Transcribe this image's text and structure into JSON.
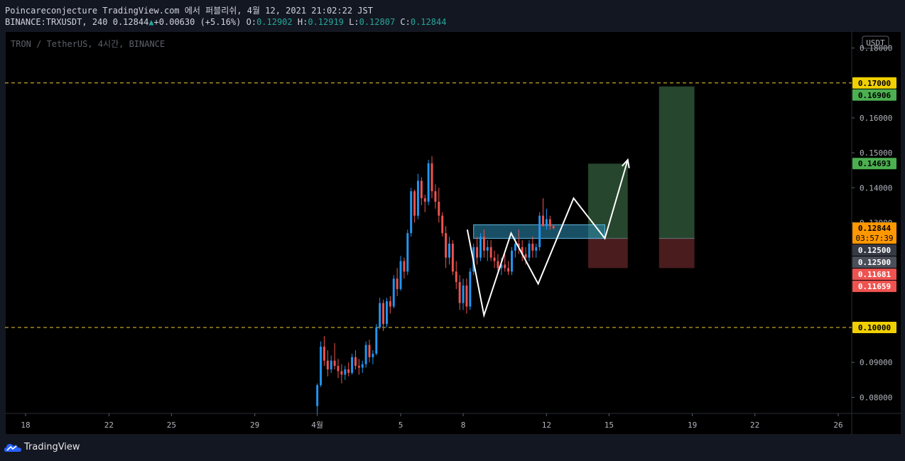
{
  "header": {
    "line1": "Poincareconjecture TradingView.com 에서 퍼블리쉬, 4월 12, 2021 21:02:22 JST",
    "symbol": "BINANCE:TRXUSDT, 240",
    "last": "0.12844",
    "change": "+0.00630 (+5.16%)",
    "o_label": "O:",
    "o": "0.12902",
    "h_label": "H:",
    "h": "0.12919",
    "l_label": "L:",
    "l": "0.12807",
    "c_label": "C:",
    "c": "0.12844"
  },
  "brand": "TradingView",
  "colors": {
    "up": "#26a69a",
    "up_candle": "#2196f3",
    "down_candle": "#ef5350",
    "dash": "#f0c93a",
    "profit": "#26462d",
    "loss": "#4a1c1e",
    "box": "#2e8fb8"
  },
  "chart_data": {
    "type": "candlestick",
    "title": "TRON / TetherUS, 4시간, BINANCE",
    "currency_badge": "USDT",
    "ylim": [
      0.0754,
      0.1848
    ],
    "y_ticks": [
      "0.18000",
      "0.16000",
      "0.15000",
      "0.14000",
      "0.13000",
      "0.09000",
      "0.08000"
    ],
    "x_ticks": [
      {
        "label": "18",
        "day": 18
      },
      {
        "label": "22",
        "day": 22
      },
      {
        "label": "25",
        "day": 25
      },
      {
        "label": "29",
        "day": 29
      },
      {
        "label": "4월",
        "day": 32
      },
      {
        "label": "5",
        "day": 36
      },
      {
        "label": "8",
        "day": 39
      },
      {
        "label": "12",
        "day": 43
      },
      {
        "label": "15",
        "day": 46
      },
      {
        "label": "19",
        "day": 50
      },
      {
        "label": "22",
        "day": 53
      },
      {
        "label": "26",
        "day": 57
      }
    ],
    "horizontal_lines": [
      {
        "price": 0.17,
        "label": "0.17000",
        "style": "dashed"
      },
      {
        "price": 0.1,
        "label": "0.10000",
        "style": "dashed"
      }
    ],
    "price_labels": [
      {
        "price": 0.16906,
        "label": "0.16906",
        "kind": "green"
      },
      {
        "price": 0.14693,
        "label": "0.14693",
        "kind": "green"
      },
      {
        "price": 0.12844,
        "label": "0.12844",
        "sub": "03:57:39",
        "kind": "orange"
      },
      {
        "price": 0.125,
        "label": "0.12500",
        "kind": "gray"
      },
      {
        "price": 0.125,
        "label": "0.12500",
        "kind": "gray2"
      },
      {
        "price": 0.11681,
        "label": "0.11681",
        "kind": "red"
      },
      {
        "price": 0.11659,
        "label": "0.11659",
        "kind": "red"
      }
    ],
    "candles_ohlc": [
      [
        0.0775,
        0.084,
        0.0754,
        0.0835
      ],
      [
        0.0835,
        0.096,
        0.083,
        0.0945
      ],
      [
        0.0945,
        0.0975,
        0.089,
        0.0905
      ],
      [
        0.0905,
        0.0935,
        0.086,
        0.088
      ],
      [
        0.088,
        0.092,
        0.087,
        0.0905
      ],
      [
        0.0905,
        0.0955,
        0.088,
        0.089
      ],
      [
        0.089,
        0.091,
        0.0855,
        0.0875
      ],
      [
        0.0875,
        0.0895,
        0.084,
        0.0865
      ],
      [
        0.0865,
        0.089,
        0.085,
        0.088
      ],
      [
        0.088,
        0.09,
        0.086,
        0.087
      ],
      [
        0.087,
        0.0925,
        0.0865,
        0.0915
      ],
      [
        0.0915,
        0.0935,
        0.088,
        0.089
      ],
      [
        0.089,
        0.091,
        0.0865,
        0.0885
      ],
      [
        0.0885,
        0.0905,
        0.087,
        0.0895
      ],
      [
        0.0895,
        0.096,
        0.0885,
        0.095
      ],
      [
        0.095,
        0.0965,
        0.09,
        0.0915
      ],
      [
        0.0915,
        0.0935,
        0.0895,
        0.0925
      ],
      [
        0.0925,
        0.101,
        0.092,
        0.1
      ],
      [
        0.1,
        0.1085,
        0.0995,
        0.107
      ],
      [
        0.107,
        0.108,
        0.099,
        0.101
      ],
      [
        0.101,
        0.1085,
        0.1,
        0.1075
      ],
      [
        0.1075,
        0.109,
        0.104,
        0.106
      ],
      [
        0.106,
        0.115,
        0.1055,
        0.114
      ],
      [
        0.114,
        0.117,
        0.109,
        0.111
      ],
      [
        0.111,
        0.1205,
        0.1105,
        0.119
      ],
      [
        0.119,
        0.12,
        0.114,
        0.116
      ],
      [
        0.116,
        0.128,
        0.115,
        0.127
      ],
      [
        0.127,
        0.14,
        0.126,
        0.139
      ],
      [
        0.139,
        0.1395,
        0.13,
        0.132
      ],
      [
        0.132,
        0.144,
        0.131,
        0.142
      ],
      [
        0.142,
        0.143,
        0.135,
        0.137
      ],
      [
        0.137,
        0.138,
        0.133,
        0.136
      ],
      [
        0.136,
        0.148,
        0.135,
        0.147
      ],
      [
        0.147,
        0.149,
        0.137,
        0.139
      ],
      [
        0.139,
        0.141,
        0.134,
        0.136
      ],
      [
        0.136,
        0.14,
        0.13,
        0.132
      ],
      [
        0.132,
        0.133,
        0.126,
        0.127
      ],
      [
        0.127,
        0.129,
        0.117,
        0.12
      ],
      [
        0.12,
        0.126,
        0.118,
        0.124
      ],
      [
        0.124,
        0.125,
        0.115,
        0.116
      ],
      [
        0.116,
        0.119,
        0.111,
        0.113
      ],
      [
        0.113,
        0.115,
        0.105,
        0.107
      ],
      [
        0.107,
        0.114,
        0.105,
        0.112
      ],
      [
        0.112,
        0.114,
        0.104,
        0.106
      ],
      [
        0.106,
        0.117,
        0.105,
        0.116
      ],
      [
        0.116,
        0.124,
        0.115,
        0.123
      ],
      [
        0.123,
        0.126,
        0.118,
        0.12
      ],
      [
        0.12,
        0.127,
        0.119,
        0.126
      ],
      [
        0.126,
        0.128,
        0.12,
        0.122
      ],
      [
        0.122,
        0.125,
        0.119,
        0.123
      ],
      [
        0.123,
        0.125,
        0.119,
        0.12
      ],
      [
        0.12,
        0.122,
        0.117,
        0.119
      ],
      [
        0.119,
        0.121,
        0.116,
        0.117
      ],
      [
        0.117,
        0.12,
        0.115,
        0.118
      ],
      [
        0.118,
        0.121,
        0.116,
        0.117
      ],
      [
        0.117,
        0.119,
        0.115,
        0.116
      ],
      [
        0.116,
        0.123,
        0.115,
        0.122
      ],
      [
        0.122,
        0.126,
        0.12,
        0.124
      ],
      [
        0.124,
        0.128,
        0.121,
        0.123
      ],
      [
        0.123,
        0.125,
        0.119,
        0.121
      ],
      [
        0.121,
        0.123,
        0.118,
        0.12
      ],
      [
        0.12,
        0.125,
        0.119,
        0.124
      ],
      [
        0.124,
        0.126,
        0.12,
        0.122
      ],
      [
        0.122,
        0.124,
        0.12,
        0.123
      ],
      [
        0.123,
        0.133,
        0.122,
        0.132
      ],
      [
        0.132,
        0.137,
        0.13,
        0.129
      ],
      [
        0.129,
        0.134,
        0.128,
        0.131
      ],
      [
        0.131,
        0.132,
        0.128,
        0.129
      ],
      [
        0.12902,
        0.12919,
        0.12807,
        0.12844
      ]
    ],
    "candle_start_day": 32.0,
    "candle_step_days": 0.1667,
    "annotations": {
      "resistance_box": {
        "x0_day": 39.5,
        "x1_day": 45.8,
        "y0": 0.1294,
        "y1": 0.1255
      },
      "pattern_line": [
        [
          39.2,
          0.128
        ],
        [
          40.0,
          0.1035
        ],
        [
          41.3,
          0.127
        ],
        [
          42.6,
          0.1125
        ],
        [
          44.3,
          0.137
        ],
        [
          45.8,
          0.1255
        ],
        [
          46.9,
          0.148
        ]
      ],
      "position_1": {
        "x0_day": 45.0,
        "x1_day": 46.9,
        "entry": 0.1255,
        "target": 0.1469,
        "stop": 0.117
      },
      "position_2": {
        "x0_day": 48.4,
        "x1_day": 50.1,
        "entry": 0.1255,
        "target": 0.169,
        "stop": 0.117
      }
    }
  }
}
